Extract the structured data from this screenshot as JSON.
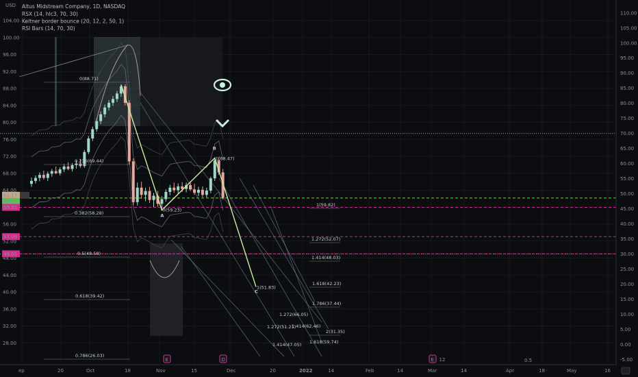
{
  "header": {
    "currency": "USD",
    "title": "Altus Midstream Company, 1D, NASDAQ",
    "indicators": [
      "RSX (14, hlc3, 70, 30)",
      "Keltner border bounce (20, 12, 2, 50, 1)",
      "RSI Bars (14, 70, 30)"
    ]
  },
  "colors": {
    "background": "#0c0d10",
    "up_candle": "#9fd8c8",
    "down_candle": "#e8a79b",
    "wave_line": "#c8f0a0",
    "magenta_level": "#d62b8e",
    "green_level": "#7fd04a"
  },
  "chart_data": {
    "type": "line",
    "left_axis": {
      "ylim": [
        24,
        104
      ],
      "ticks": [
        "104.00",
        "100.00",
        "96.00",
        "92.00",
        "88.00",
        "84.00",
        "80.00",
        "76.00",
        "72.00",
        "68.00",
        "64.00",
        "60.00",
        "56.00",
        "52.00",
        "48.00",
        "44.00",
        "40.00",
        "36.00",
        "32.00",
        "28.00"
      ]
    },
    "right_axis": {
      "ylim": [
        -4,
        112
      ],
      "ticks": [
        "110.00",
        "105.00",
        "100.00",
        "95.00",
        "90.00",
        "85.00",
        "80.00",
        "75.00",
        "70.00",
        "65.00",
        "60.00",
        "55.00",
        "50.00",
        "45.00",
        "40.00",
        "35.00",
        "30.00",
        "25.00",
        "20.00",
        "15.00",
        "10.00",
        "5.00",
        "0.00",
        "-5.00"
      ]
    },
    "x_ticks": [
      "ep",
      "20",
      "Oct",
      "18",
      "Nov",
      "15",
      "Dec",
      "20",
      "2022",
      "14",
      "Feb",
      "14",
      "Mar",
      "14",
      "Apr",
      "18",
      "May",
      "16"
    ],
    "price_labels": [
      {
        "value": "62.17",
        "color": "#c4a98a"
      },
      {
        "value": "62.17",
        "color": "#5bbf5a"
      },
      {
        "value": "59.95",
        "color": "#d62b8e"
      },
      {
        "value": "53.06",
        "color": "#d62b8e"
      },
      {
        "value": "49.01",
        "color": "#d62b8e"
      }
    ],
    "candles": [
      {
        "o": 65.5,
        "h": 67.0,
        "l": 64.8,
        "c": 66.2
      },
      {
        "o": 66.2,
        "h": 67.5,
        "l": 65.6,
        "c": 66.9
      },
      {
        "o": 66.9,
        "h": 68.2,
        "l": 66.1,
        "c": 67.6
      },
      {
        "o": 67.6,
        "h": 68.6,
        "l": 66.5,
        "c": 66.9
      },
      {
        "o": 66.9,
        "h": 68.4,
        "l": 66.2,
        "c": 67.9
      },
      {
        "o": 67.9,
        "h": 69.0,
        "l": 67.2,
        "c": 68.5
      },
      {
        "o": 68.5,
        "h": 69.6,
        "l": 67.8,
        "c": 68.0
      },
      {
        "o": 68.0,
        "h": 69.4,
        "l": 67.5,
        "c": 68.9
      },
      {
        "o": 68.9,
        "h": 70.2,
        "l": 68.3,
        "c": 69.6
      },
      {
        "o": 69.6,
        "h": 70.6,
        "l": 68.7,
        "c": 69.0
      },
      {
        "o": 69.0,
        "h": 70.4,
        "l": 68.4,
        "c": 69.9
      },
      {
        "o": 69.9,
        "h": 71.0,
        "l": 69.1,
        "c": 70.3
      },
      {
        "o": 70.3,
        "h": 71.4,
        "l": 69.3,
        "c": 69.7
      },
      {
        "o": 69.7,
        "h": 73.5,
        "l": 69.3,
        "c": 73.0
      },
      {
        "o": 73.0,
        "h": 76.8,
        "l": 72.5,
        "c": 76.2
      },
      {
        "o": 76.2,
        "h": 79.0,
        "l": 75.6,
        "c": 78.4
      },
      {
        "o": 78.4,
        "h": 81.0,
        "l": 77.8,
        "c": 80.3
      },
      {
        "o": 80.3,
        "h": 82.6,
        "l": 79.6,
        "c": 81.9
      },
      {
        "o": 81.9,
        "h": 84.2,
        "l": 81.2,
        "c": 83.5
      },
      {
        "o": 83.5,
        "h": 85.3,
        "l": 82.8,
        "c": 84.6
      },
      {
        "o": 84.6,
        "h": 86.2,
        "l": 83.9,
        "c": 85.5
      },
      {
        "o": 85.5,
        "h": 87.4,
        "l": 84.8,
        "c": 86.8
      },
      {
        "o": 86.8,
        "h": 88.9,
        "l": 86.0,
        "c": 88.5
      },
      {
        "o": 88.5,
        "h": 89.0,
        "l": 84.0,
        "c": 84.6
      },
      {
        "o": 84.6,
        "h": 85.2,
        "l": 70.0,
        "c": 70.8
      },
      {
        "o": 70.8,
        "h": 71.5,
        "l": 60.5,
        "c": 61.2
      },
      {
        "o": 61.2,
        "h": 65.8,
        "l": 60.4,
        "c": 64.6
      },
      {
        "o": 64.6,
        "h": 66.0,
        "l": 62.0,
        "c": 62.9
      },
      {
        "o": 62.9,
        "h": 64.6,
        "l": 61.4,
        "c": 63.8
      },
      {
        "o": 63.8,
        "h": 64.8,
        "l": 61.0,
        "c": 61.7
      },
      {
        "o": 61.7,
        "h": 63.4,
        "l": 60.0,
        "c": 62.7
      },
      {
        "o": 62.7,
        "h": 63.8,
        "l": 60.1,
        "c": 60.8
      },
      {
        "o": 60.8,
        "h": 62.6,
        "l": 59.3,
        "c": 61.9
      },
      {
        "o": 61.9,
        "h": 64.2,
        "l": 61.3,
        "c": 63.6
      },
      {
        "o": 63.6,
        "h": 65.3,
        "l": 62.8,
        "c": 64.6
      },
      {
        "o": 64.6,
        "h": 65.8,
        "l": 63.4,
        "c": 64.0
      },
      {
        "o": 64.0,
        "h": 65.6,
        "l": 63.1,
        "c": 64.9
      },
      {
        "o": 64.9,
        "h": 65.9,
        "l": 63.6,
        "c": 64.3
      },
      {
        "o": 64.3,
        "h": 65.8,
        "l": 63.5,
        "c": 65.2
      },
      {
        "o": 65.2,
        "h": 66.0,
        "l": 63.8,
        "c": 64.2
      },
      {
        "o": 64.2,
        "h": 65.5,
        "l": 62.9,
        "c": 63.4
      },
      {
        "o": 63.4,
        "h": 64.8,
        "l": 62.6,
        "c": 64.1
      },
      {
        "o": 64.1,
        "h": 64.9,
        "l": 62.4,
        "c": 62.9
      },
      {
        "o": 62.9,
        "h": 64.6,
        "l": 62.3,
        "c": 63.9
      },
      {
        "o": 63.9,
        "h": 67.2,
        "l": 63.3,
        "c": 66.8
      },
      {
        "o": 66.8,
        "h": 71.6,
        "l": 66.2,
        "c": 71.0
      },
      {
        "o": 71.0,
        "h": 71.8,
        "l": 67.6,
        "c": 68.2
      },
      {
        "o": 68.2,
        "h": 69.0,
        "l": 61.8,
        "c": 62.2
      }
    ],
    "waves": [
      {
        "label": "A",
        "text": "0(59.23)"
      },
      {
        "label": "B",
        "text": "1(68.47)"
      },
      {
        "label": "C",
        "text": "1(51.83)"
      }
    ],
    "fib_retracement": [
      "0(88.71)",
      "0.236(69.44)",
      "0.382(58.28)",
      "0.5(48.58)",
      "0.618(39.42)",
      "0.786(26.03)"
    ],
    "fib_extension": [
      "1(59.82)",
      "1.272(52.07)",
      "1.414(48.03)",
      "1.618(42.23)",
      "1.786(37.44)",
      "2(31.35)"
    ],
    "fib_channel": [
      "1.272(66.05)",
      "1.414(62.46)",
      "1.272(51.21)",
      "1.618(59.74)",
      "1.414(47.05)"
    ],
    "rsi_levels": {
      "upper": 70,
      "lower": 30
    },
    "event_markers": [
      "E",
      "D",
      "E",
      "12"
    ],
    "footer_labels": [
      "0.5",
      "0"
    ]
  }
}
